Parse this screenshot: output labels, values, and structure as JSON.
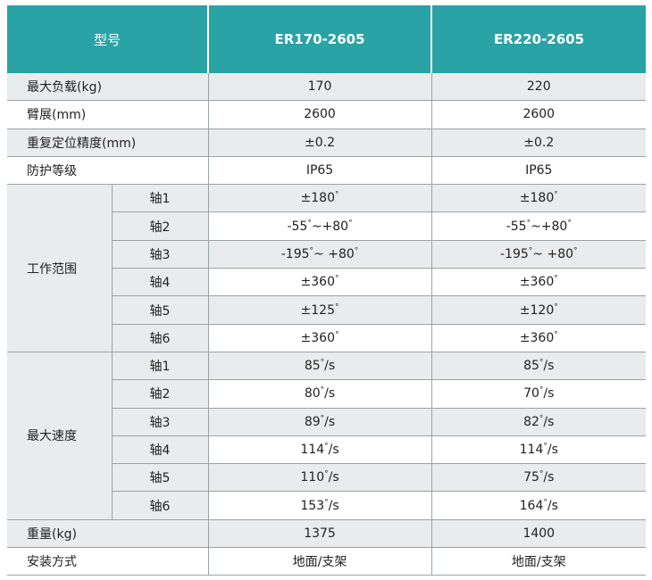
{
  "header": {
    "label": "型号",
    "models": [
      "ER170-2605",
      "ER220-2605"
    ]
  },
  "rows": [
    {
      "label": "最大负载(kg)",
      "values": [
        "170",
        "220"
      ]
    },
    {
      "label": "臂展(mm)",
      "values": [
        "2600",
        "2600"
      ]
    },
    {
      "label": "重复定位精度(mm)",
      "values": [
        "±0.2",
        "±0.2"
      ]
    },
    {
      "label": "防护等级",
      "values": [
        "IP65",
        "IP65"
      ]
    }
  ],
  "work_range": {
    "label": "工作范围",
    "axes": [
      {
        "label": "轴1",
        "values": [
          "±180°",
          "±180°"
        ]
      },
      {
        "label": "轴2",
        "values": [
          "-55°~+80°",
          "-55°~+80°"
        ]
      },
      {
        "label": "轴3",
        "values": [
          "-195°~ +80°",
          "-195°~ +80°"
        ]
      },
      {
        "label": "轴4",
        "values": [
          "±360°",
          "±360°"
        ]
      },
      {
        "label": "轴5",
        "values": [
          "±125°",
          "±120°"
        ]
      },
      {
        "label": "轴6",
        "values": [
          "±360°",
          "±360°"
        ]
      }
    ]
  },
  "max_speed": {
    "label": "最大速度",
    "axes": [
      {
        "label": "轴1",
        "values": [
          "85°/s",
          "85°/s"
        ]
      },
      {
        "label": "轴2",
        "values": [
          "80°/s",
          "70°/s"
        ]
      },
      {
        "label": "轴3",
        "values": [
          "89°/s",
          "82°/s"
        ]
      },
      {
        "label": "轴4",
        "values": [
          "114°/s",
          "114°/s"
        ]
      },
      {
        "label": "轴5",
        "values": [
          "110°/s",
          "75°/s"
        ]
      },
      {
        "label": "轴6",
        "values": [
          "153°/s",
          "164°/s"
        ]
      }
    ]
  },
  "footer_rows": [
    {
      "label": "重量(kg)",
      "values": [
        "1375",
        "1400"
      ]
    },
    {
      "label": "安装方式",
      "values": [
        "地面/支架",
        "地面/支架"
      ]
    }
  ],
  "colors": {
    "header_bg": "#2aa3a6",
    "shade_bg": "#e9ebed",
    "border": "#9aa3a8"
  }
}
